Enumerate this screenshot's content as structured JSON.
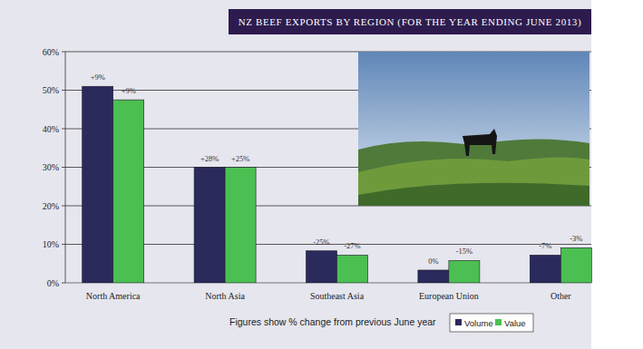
{
  "chart_data": {
    "type": "bar",
    "title": "NZ BEEF  EXPORTS BY REGION (FOR THE YEAR ENDING JUNE 2013)",
    "footnote": "Figures show % change from previous June year",
    "categories": [
      "North America",
      "North Asia",
      "Southeast Asia",
      "European Union",
      "Other"
    ],
    "series": [
      {
        "name": "Volume",
        "color": "#2b2a5c",
        "values": [
          51,
          30,
          8.3,
          3.3,
          7.2
        ],
        "change_labels": [
          "+9%",
          "+28%",
          "-25%",
          "0%",
          "-7%"
        ]
      },
      {
        "name": "Value",
        "color": "#4cbf52",
        "values": [
          47.5,
          30,
          7.2,
          5.8,
          9.1
        ],
        "change_labels": [
          "+9%",
          "+25%",
          "-27%",
          "-15%",
          "-3%"
        ]
      }
    ],
    "ylim": [
      0,
      60
    ],
    "yticks": [
      {
        "value": 0,
        "label": "0%"
      },
      {
        "value": 10,
        "label": "10%"
      },
      {
        "value": 20,
        "label": "20%"
      },
      {
        "value": 30,
        "label": "30%"
      },
      {
        "value": 40,
        "label": "40%"
      },
      {
        "value": 50,
        "label": "50%"
      },
      {
        "value": 60,
        "label": "60%"
      }
    ],
    "grid": true,
    "legend": "bottom-right"
  }
}
